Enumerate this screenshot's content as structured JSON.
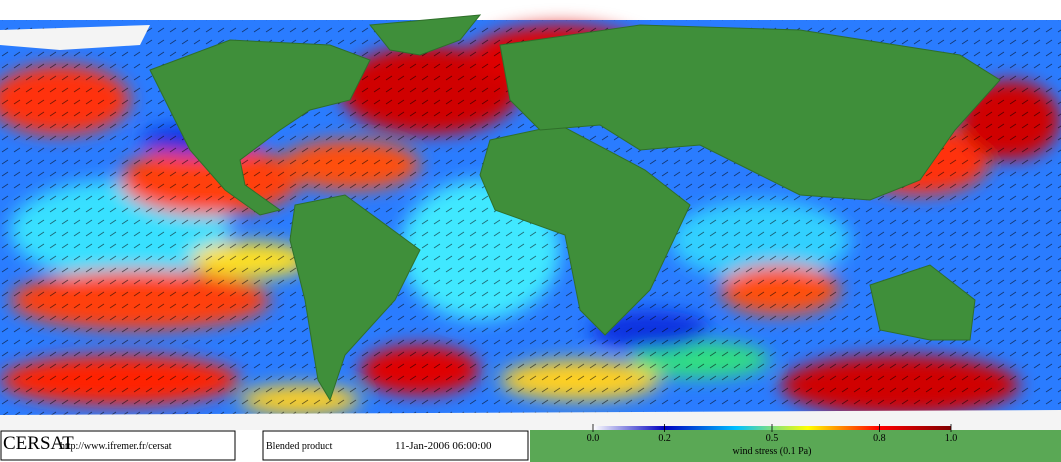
{
  "logo": "CERSAT",
  "url": "http://www.ifremer.fr/cersat",
  "product": "Blended product",
  "datetime": "11-Jan-2006 06:00:00",
  "colorbar": {
    "label": "wind stress (0.1 Pa)",
    "range": [
      0,
      1
    ],
    "ticks": [
      {
        "value": 0,
        "label": "0.0"
      },
      0.2,
      0.5,
      0.8,
      {
        "value": 1,
        "label": "1.0"
      }
    ],
    "colors": [
      "#ffffff",
      "#0000c0",
      "#00c0ff",
      "#ffff00",
      "#ff0000",
      "#800000"
    ]
  }
}
